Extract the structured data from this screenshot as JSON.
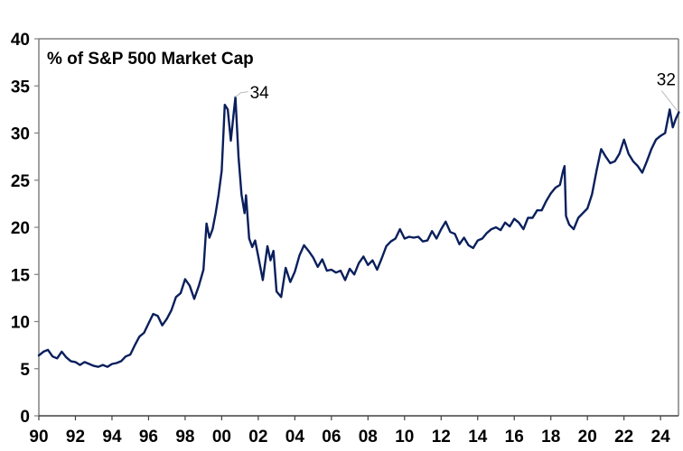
{
  "chart_data": {
    "type": "line",
    "title": "% of S&P 500 Market Cap",
    "xlabel": "",
    "ylabel": "",
    "xlim": [
      1990,
      2025.05
    ],
    "ylim": [
      0,
      40
    ],
    "grid": false,
    "legend": "none",
    "line_color": "#0a1f5c",
    "axis_color": "#808080",
    "y_ticks": [
      0,
      5,
      10,
      15,
      20,
      25,
      30,
      35,
      40
    ],
    "y_tick_labels": [
      "0",
      "5",
      "10",
      "15",
      "20",
      "25",
      "30",
      "35",
      "40"
    ],
    "x_ticks": [
      1990,
      1992,
      1994,
      1996,
      1998,
      2000,
      2002,
      2004,
      2006,
      2008,
      2010,
      2012,
      2014,
      2016,
      2018,
      2020,
      2022,
      2024
    ],
    "x_tick_labels": [
      "90",
      "92",
      "94",
      "96",
      "98",
      "00",
      "02",
      "04",
      "06",
      "08",
      "10",
      "12",
      "14",
      "16",
      "18",
      "20",
      "22",
      "24"
    ],
    "annotations": [
      {
        "text": "34",
        "x": 2000.75,
        "y": 33.8
      },
      {
        "text": "32",
        "x": 2024.9,
        "y": 32.2
      }
    ],
    "series": [
      {
        "name": "% of S&P 500 Market Cap",
        "x": [
          1990.0,
          1990.25,
          1990.5,
          1990.75,
          1991.0,
          1991.25,
          1991.5,
          1991.75,
          1992.0,
          1992.25,
          1992.5,
          1992.75,
          1993.0,
          1993.25,
          1993.5,
          1993.75,
          1994.0,
          1994.25,
          1994.5,
          1994.75,
          1995.0,
          1995.25,
          1995.5,
          1995.75,
          1996.0,
          1996.25,
          1996.5,
          1996.75,
          1997.0,
          1997.25,
          1997.5,
          1997.75,
          1998.0,
          1998.25,
          1998.5,
          1998.75,
          1999.0,
          1999.17,
          1999.33,
          1999.5,
          1999.67,
          1999.83,
          2000.0,
          2000.17,
          2000.33,
          2000.5,
          2000.67,
          2000.75,
          2000.92,
          2001.08,
          2001.25,
          2001.33,
          2001.5,
          2001.67,
          2001.83,
          2002.0,
          2002.25,
          2002.5,
          2002.67,
          2002.83,
          2003.0,
          2003.25,
          2003.5,
          2003.75,
          2004.0,
          2004.25,
          2004.5,
          2004.75,
          2005.0,
          2005.25,
          2005.5,
          2005.75,
          2006.0,
          2006.25,
          2006.5,
          2006.75,
          2007.0,
          2007.25,
          2007.5,
          2007.75,
          2008.0,
          2008.25,
          2008.5,
          2008.75,
          2009.0,
          2009.25,
          2009.5,
          2009.75,
          2010.0,
          2010.25,
          2010.5,
          2010.75,
          2011.0,
          2011.25,
          2011.5,
          2011.75,
          2012.0,
          2012.25,
          2012.5,
          2012.75,
          2013.0,
          2013.25,
          2013.5,
          2013.75,
          2014.0,
          2014.25,
          2014.5,
          2014.75,
          2015.0,
          2015.25,
          2015.5,
          2015.75,
          2016.0,
          2016.25,
          2016.5,
          2016.75,
          2017.0,
          2017.25,
          2017.5,
          2017.75,
          2018.0,
          2018.25,
          2018.5,
          2018.67,
          2018.75,
          2018.83,
          2019.0,
          2019.25,
          2019.5,
          2019.75,
          2020.0,
          2020.25,
          2020.5,
          2020.75,
          2021.0,
          2021.25,
          2021.5,
          2021.75,
          2022.0,
          2022.25,
          2022.5,
          2022.75,
          2023.0,
          2023.25,
          2023.5,
          2023.75,
          2024.0,
          2024.25,
          2024.5,
          2024.67,
          2024.83,
          2025.0
        ],
        "y": [
          6.4,
          6.8,
          7.0,
          6.3,
          6.1,
          6.8,
          6.2,
          5.8,
          5.7,
          5.4,
          5.7,
          5.5,
          5.3,
          5.2,
          5.4,
          5.2,
          5.5,
          5.6,
          5.8,
          6.3,
          6.5,
          7.5,
          8.4,
          8.8,
          9.8,
          10.8,
          10.6,
          9.6,
          10.3,
          11.2,
          12.6,
          13.0,
          14.5,
          13.8,
          12.4,
          13.8,
          15.5,
          20.4,
          18.9,
          19.8,
          21.5,
          23.5,
          26.0,
          33.0,
          32.5,
          29.2,
          32.4,
          33.8,
          27.5,
          23.5,
          21.5,
          23.4,
          18.8,
          17.9,
          18.6,
          16.9,
          14.4,
          18.0,
          16.5,
          17.5,
          13.2,
          12.6,
          15.7,
          14.2,
          15.3,
          17.0,
          18.1,
          17.5,
          16.8,
          15.8,
          16.6,
          15.4,
          15.5,
          15.2,
          15.4,
          14.4,
          15.6,
          15.0,
          16.2,
          16.9,
          16.0,
          16.5,
          15.5,
          16.7,
          18.0,
          18.5,
          18.8,
          19.8,
          18.8,
          19.0,
          18.9,
          19.0,
          18.5,
          18.6,
          19.6,
          18.8,
          19.8,
          20.6,
          19.5,
          19.3,
          18.2,
          18.9,
          18.1,
          17.8,
          18.6,
          18.8,
          19.4,
          19.8,
          20.0,
          19.7,
          20.5,
          20.1,
          20.9,
          20.5,
          19.8,
          21.0,
          21.0,
          21.8,
          21.8,
          22.8,
          23.6,
          24.2,
          24.5,
          26.0,
          26.5,
          21.2,
          20.3,
          19.8,
          21.0,
          21.5,
          22.0,
          23.5,
          26.0,
          28.3,
          27.5,
          26.8,
          27.0,
          27.8,
          29.3,
          27.8,
          27.0,
          26.5,
          25.8,
          27.0,
          28.3,
          29.3,
          29.7,
          30.0,
          32.5,
          30.6,
          31.5,
          32.2
        ]
      }
    ]
  }
}
